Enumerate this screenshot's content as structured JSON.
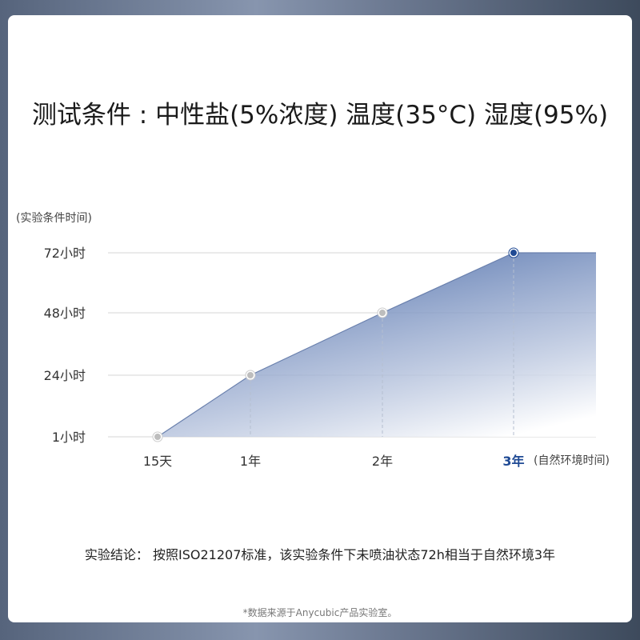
{
  "title": "测试条件 : 中性盐(5%浓度) 温度(35°C) 湿度(95%)",
  "chart_data": {
    "type": "area",
    "ylabel": "(实验条件时间)",
    "xlabel": "(自然环境时间)",
    "y_ticks": [
      "1小时",
      "24小时",
      "48小时",
      "72小时"
    ],
    "x_ticks": [
      "15天",
      "1年",
      "2年",
      "3年"
    ],
    "highlight_x": "3年",
    "points": [
      {
        "x": "15天",
        "y": 1
      },
      {
        "x": "1年",
        "y": 24
      },
      {
        "x": "2年",
        "y": 48
      },
      {
        "x": "3年",
        "y": 72
      }
    ],
    "grid": true,
    "colors": {
      "fill": "#5a78b0",
      "highlight": "#1f4a94",
      "point": "#bdbdbd"
    }
  },
  "conclusion": "实验结论： 按照ISO21207标准，该实验条件下未喷油状态72h相当于自然环境3年",
  "source": "*数据来源于Anycubic产品实验室。"
}
